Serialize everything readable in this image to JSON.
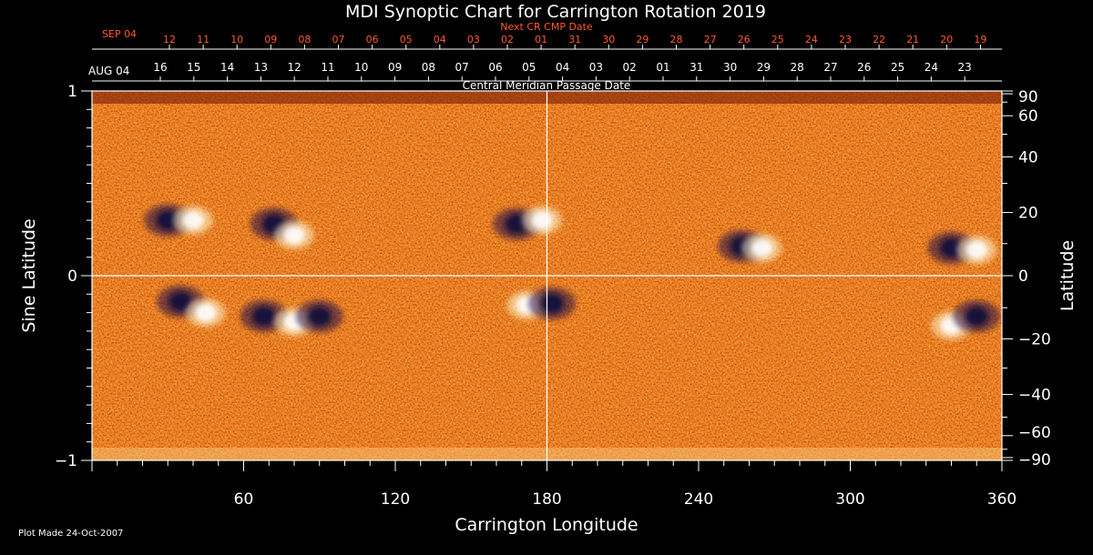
{
  "chart_data": {
    "type": "heatmap",
    "title": "MDI Synoptic Chart for Carrington Rotation 2019",
    "xlabel": "Carrington Longitude",
    "ylabel_left": "Sine Latitude",
    "ylabel_right": "Latitude",
    "xlim": [
      0,
      360
    ],
    "ylim": [
      -1,
      1
    ],
    "x_ticks": [
      "60",
      "120",
      "180",
      "240",
      "300",
      "360"
    ],
    "x_tick_values": [
      60,
      120,
      180,
      240,
      300,
      360
    ],
    "y_left_ticks": [
      {
        "value": 1,
        "label": "1"
      },
      {
        "value": 0,
        "label": "0"
      },
      {
        "value": -1,
        "label": "−1"
      }
    ],
    "y_right_ticks": [
      {
        "value": 90,
        "label": "90"
      },
      {
        "value": 60,
        "label": "60"
      },
      {
        "value": 40,
        "label": "40"
      },
      {
        "value": 20,
        "label": "20"
      },
      {
        "value": 0,
        "label": "0"
      },
      {
        "value": -20,
        "label": "−20"
      },
      {
        "value": -40,
        "label": "−40"
      },
      {
        "value": -60,
        "label": "−60"
      },
      {
        "value": -90,
        "label": "−90"
      }
    ],
    "top_axis_title": "Central Meridian Passage Date",
    "top_axis_start_label": "AUG 04",
    "top_axis_days": [
      "16",
      "15",
      "14",
      "13",
      "12",
      "11",
      "10",
      "09",
      "08",
      "07",
      "06",
      "05",
      "04",
      "03",
      "02",
      "01",
      "31",
      "30",
      "29",
      "28",
      "27",
      "26",
      "25",
      "24",
      "23"
    ],
    "next_axis_title": "Next CR CMP Date",
    "next_axis_start_label": "SEP 04",
    "next_axis_days": [
      "12",
      "11",
      "10",
      "09",
      "08",
      "07",
      "06",
      "05",
      "04",
      "03",
      "02",
      "01",
      "31",
      "30",
      "29",
      "28",
      "27",
      "26",
      "25",
      "24",
      "23",
      "22",
      "21",
      "20",
      "19"
    ],
    "crosshair": {
      "longitude": 180,
      "sine_latitude": 0
    },
    "active_regions": [
      {
        "longitude": 30,
        "sine_latitude": 0.3,
        "polarity": "negative"
      },
      {
        "longitude": 40,
        "sine_latitude": 0.3,
        "polarity": "positive"
      },
      {
        "longitude": 72,
        "sine_latitude": 0.28,
        "polarity": "negative"
      },
      {
        "longitude": 80,
        "sine_latitude": 0.22,
        "polarity": "positive"
      },
      {
        "longitude": 168,
        "sine_latitude": 0.28,
        "polarity": "negative"
      },
      {
        "longitude": 178,
        "sine_latitude": 0.3,
        "polarity": "positive"
      },
      {
        "longitude": 257,
        "sine_latitude": 0.16,
        "polarity": "negative"
      },
      {
        "longitude": 265,
        "sine_latitude": 0.15,
        "polarity": "positive"
      },
      {
        "longitude": 340,
        "sine_latitude": 0.15,
        "polarity": "negative"
      },
      {
        "longitude": 350,
        "sine_latitude": 0.14,
        "polarity": "positive"
      },
      {
        "longitude": 35,
        "sine_latitude": -0.14,
        "polarity": "negative"
      },
      {
        "longitude": 45,
        "sine_latitude": -0.2,
        "polarity": "positive"
      },
      {
        "longitude": 68,
        "sine_latitude": -0.22,
        "polarity": "negative"
      },
      {
        "longitude": 80,
        "sine_latitude": -0.25,
        "polarity": "positive"
      },
      {
        "longitude": 90,
        "sine_latitude": -0.22,
        "polarity": "negative"
      },
      {
        "longitude": 172,
        "sine_latitude": -0.16,
        "polarity": "positive"
      },
      {
        "longitude": 182,
        "sine_latitude": -0.15,
        "polarity": "negative"
      },
      {
        "longitude": 340,
        "sine_latitude": -0.27,
        "polarity": "positive"
      },
      {
        "longitude": 350,
        "sine_latitude": -0.22,
        "polarity": "negative"
      }
    ],
    "colors": {
      "background": "#000000",
      "field_base": "#e84a10",
      "positive": "#ffffff",
      "negative": "#10103a",
      "top_axis_red": "#ff5a2a"
    }
  },
  "footer": {
    "plot_made": "Plot Made 24-Oct-2007"
  }
}
